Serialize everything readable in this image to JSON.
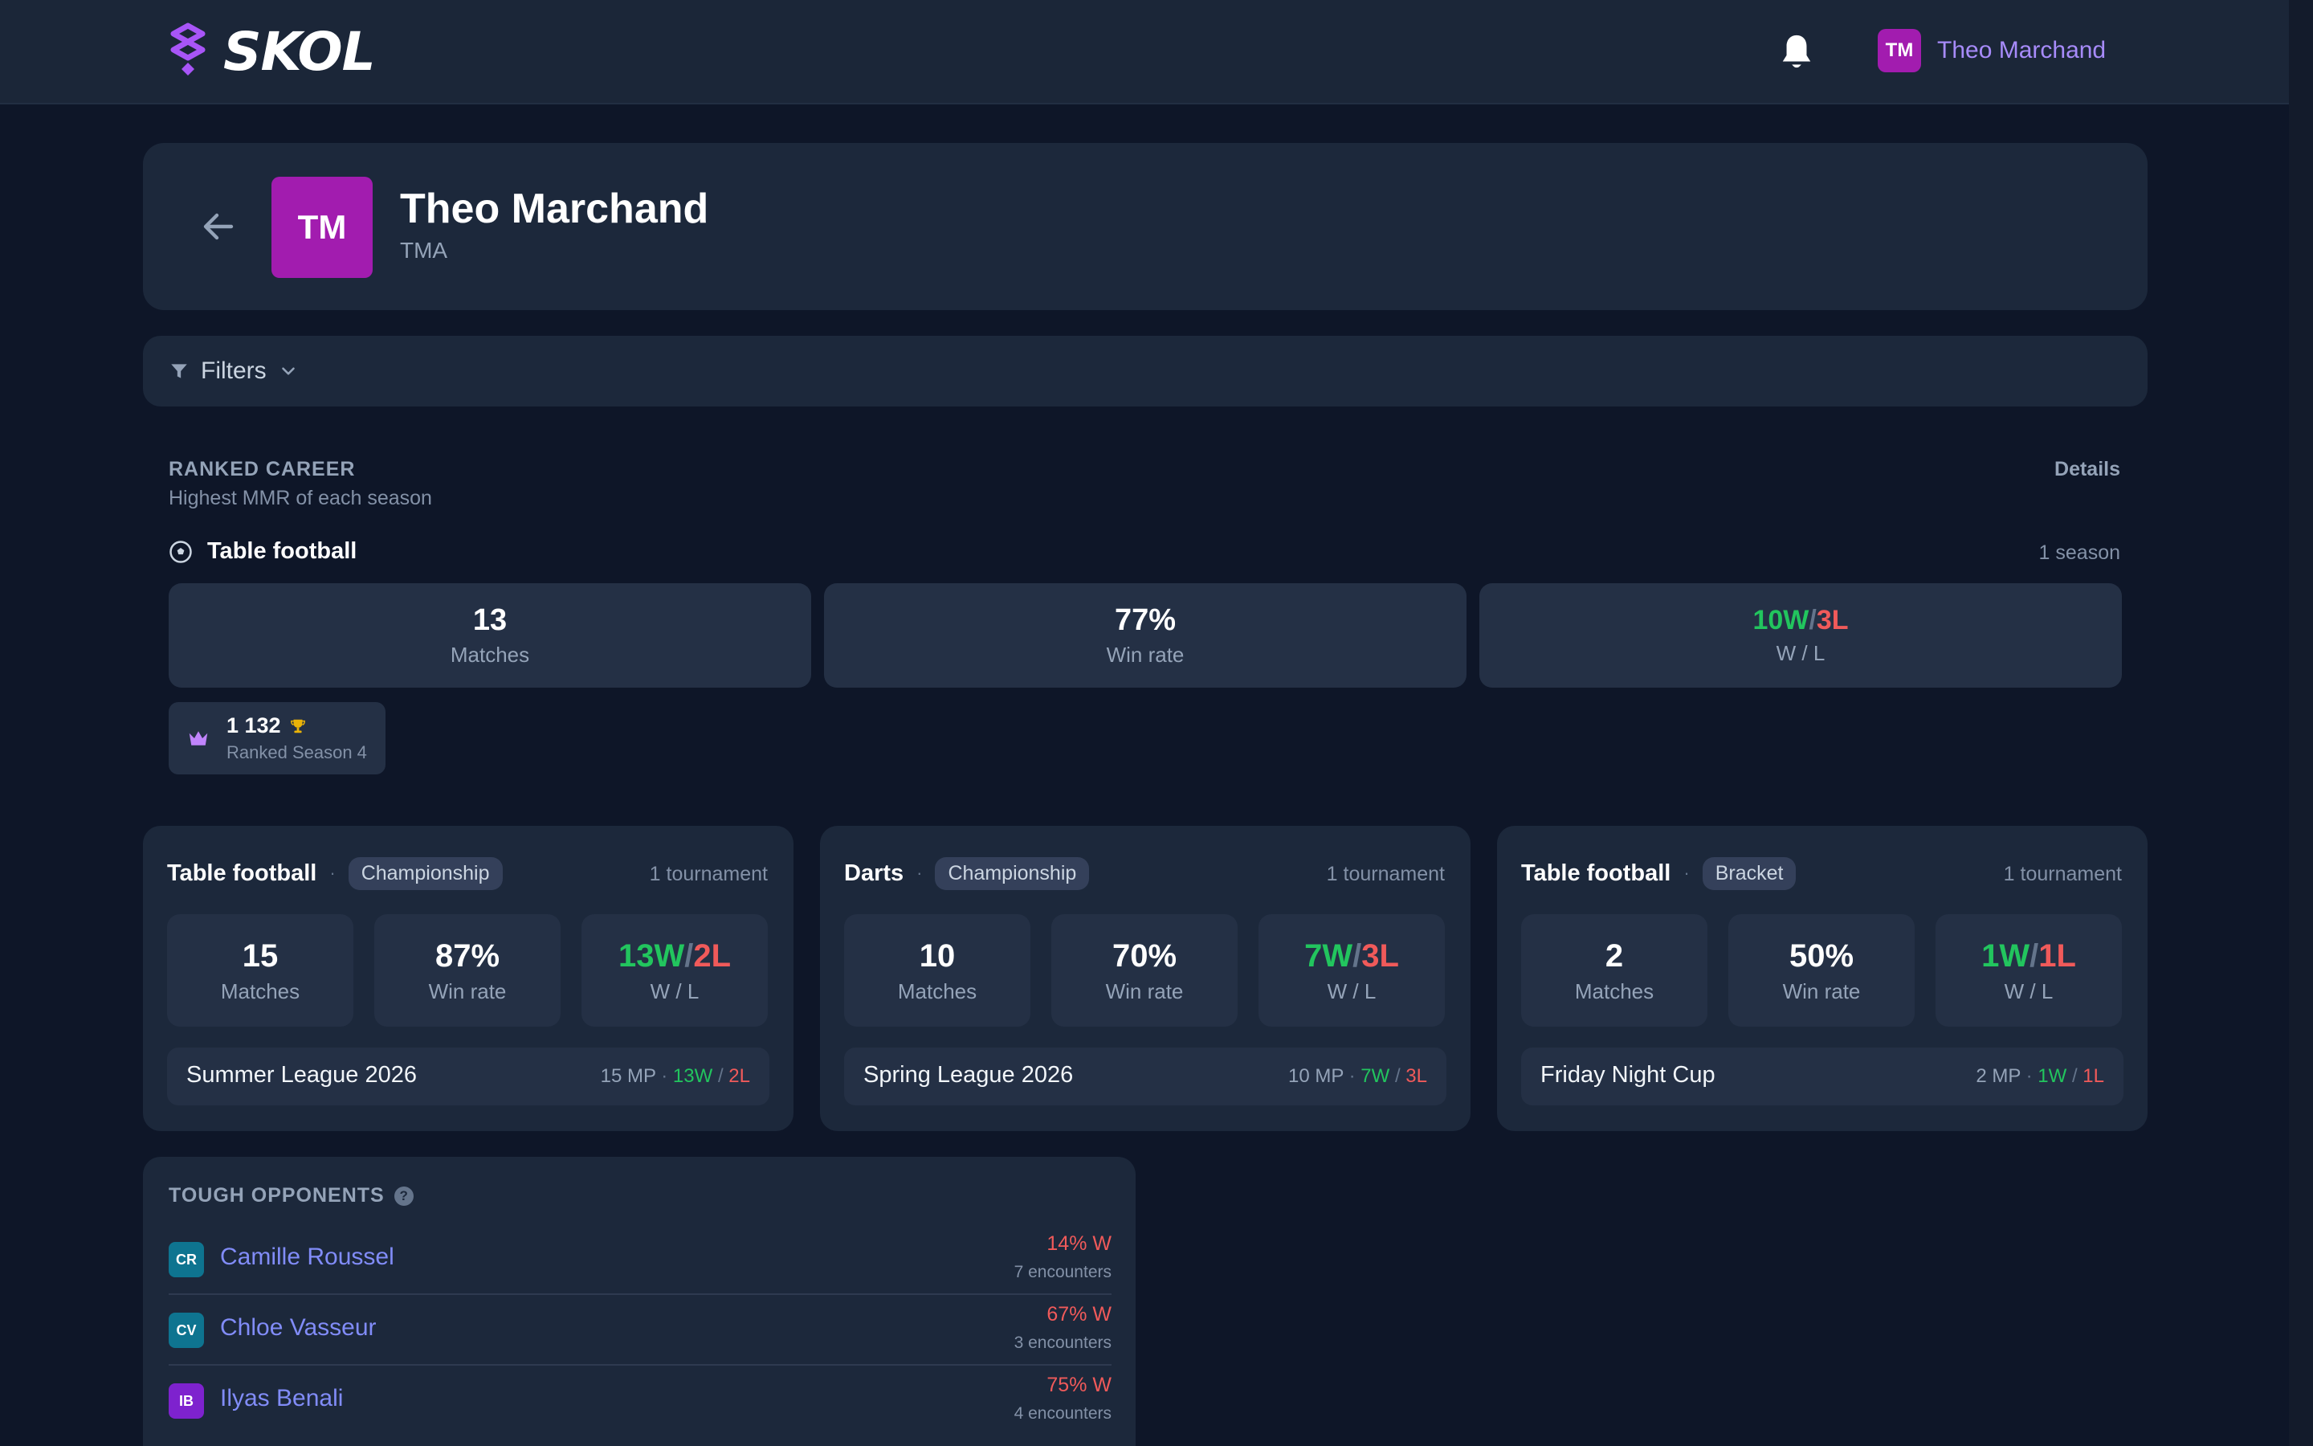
{
  "header": {
    "brand": "SKOL",
    "user_initials": "TM",
    "user_name": "Theo Marchand"
  },
  "profile": {
    "initials": "TM",
    "name": "Theo Marchand",
    "tag": "TMA"
  },
  "filters": {
    "label": "Filters"
  },
  "ranked_career": {
    "title": "RANKED CAREER",
    "subtitle": "Highest MMR of each season",
    "details_label": "Details",
    "game": "Table football",
    "season_count": "1 season",
    "matches": "13",
    "matches_label": "Matches",
    "win_rate": "77%",
    "win_rate_label": "Win rate",
    "wins": "10W",
    "losses": "3L",
    "wl_label": "W / L",
    "season_chip": {
      "mmr": "1 132",
      "season": "Ranked Season 4"
    }
  },
  "tournaments": [
    {
      "game": "Table football",
      "type": "Championship",
      "count": "1 tournament",
      "matches": "15",
      "win_rate": "87%",
      "wins": "13W",
      "losses": "2L",
      "league": "Summer League 2026",
      "mp": "15 MP",
      "lw": "13W",
      "ll": "2L"
    },
    {
      "game": "Darts",
      "type": "Championship",
      "count": "1 tournament",
      "matches": "10",
      "win_rate": "70%",
      "wins": "7W",
      "losses": "3L",
      "league": "Spring League 2026",
      "mp": "10 MP",
      "lw": "7W",
      "ll": "3L"
    },
    {
      "game": "Table football",
      "type": "Bracket",
      "count": "1 tournament",
      "matches": "2",
      "win_rate": "50%",
      "wins": "1W",
      "losses": "1L",
      "league": "Friday Night Cup",
      "mp": "2 MP",
      "lw": "1W",
      "ll": "1L"
    }
  ],
  "labels": {
    "matches": "Matches",
    "win_rate": "Win rate",
    "wl": "W / L",
    "slash": "/",
    "dot": "·"
  },
  "tough_opponents": {
    "title": "TOUGH OPPONENTS",
    "help": "?",
    "items": [
      {
        "initials": "CR",
        "name": "Camille Roussel",
        "pct": "14% W",
        "encounters": "7 encounters",
        "color": "#0e7490"
      },
      {
        "initials": "CV",
        "name": "Chloe Vasseur",
        "pct": "67% W",
        "encounters": "3 encounters",
        "color": "#0e7490"
      },
      {
        "initials": "IB",
        "name": "Ilyas Benali",
        "pct": "75% W",
        "encounters": "4 encounters",
        "color": "#7e22ce"
      }
    ]
  },
  "colors": {
    "accent": "#a21caf",
    "win": "#22c55e",
    "loss": "#f05a5a",
    "link": "#818cf8"
  }
}
